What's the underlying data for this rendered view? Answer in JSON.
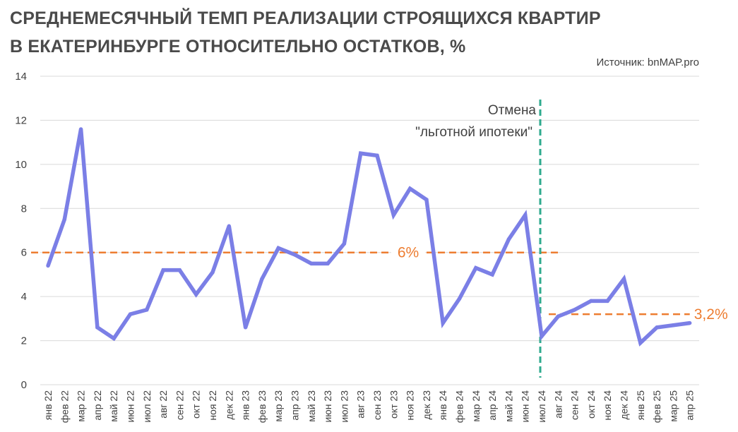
{
  "title_line1": "СРЕДНЕМЕСЯЧНЫЙ  ТЕМП РЕАЛИЗАЦИИ СТРОЯЩИХСЯ КВАРТИР",
  "title_line2": "В ЕКАТЕРИНБУРГЕ ОТНОСИТЕЛЬНО ОСТАТКОВ, %",
  "source": "Источник: bnMAP.pro",
  "colors": {
    "line": "#7b7fe6",
    "reference": "#ed7d31",
    "event": "#2eaa8e",
    "grid": "#d9d9d9"
  },
  "chart_data": {
    "type": "line",
    "title": "СРЕДНЕМЕСЯЧНЫЙ  ТЕМП РЕАЛИЗАЦИИ СТРОЯЩИХСЯ КВАРТИР В ЕКАТЕРИНБУРГЕ ОТНОСИТЕЛЬНО ОСТАТКОВ, %",
    "xlabel": "",
    "ylabel": "",
    "ylim": [
      0,
      14
    ],
    "yticks": [
      0,
      2,
      4,
      6,
      8,
      10,
      12,
      14
    ],
    "grid": true,
    "categories": [
      "янв 22",
      "фев 22",
      "мар 22",
      "апр 22",
      "май 22",
      "июн 22",
      "июл 22",
      "авг 22",
      "сен 22",
      "окт 22",
      "ноя 22",
      "дек 22",
      "янв 23",
      "фев 23",
      "мар 23",
      "апр 23",
      "май 23",
      "июн 23",
      "июл 23",
      "авг 23",
      "сен 23",
      "окт 23",
      "ноя 23",
      "дек 23",
      "янв 24",
      "фев 24",
      "мар 24",
      "апр 24",
      "май 24",
      "июн 24",
      "июл 24",
      "авг 24",
      "сен 24",
      "окт 24",
      "ноя 24",
      "дек 24",
      "янв 25",
      "фев 25",
      "мар 25",
      "апр 25"
    ],
    "values": [
      5.4,
      7.5,
      11.6,
      2.6,
      2.1,
      3.2,
      3.4,
      5.2,
      5.2,
      4.1,
      5.1,
      7.2,
      2.6,
      4.8,
      6.2,
      5.9,
      5.5,
      5.5,
      6.4,
      10.5,
      10.4,
      7.7,
      8.9,
      8.4,
      2.8,
      3.9,
      5.3,
      5.0,
      6.6,
      7.7,
      2.2,
      3.1,
      3.4,
      3.8,
      3.8,
      4.8,
      1.9,
      2.6,
      2.7,
      2.8
    ],
    "reference_lines": [
      {
        "value": 6,
        "label": "6%",
        "from": "янв 22",
        "to": "июл 24"
      },
      {
        "value": 3.2,
        "label": "3,2%",
        "from": "июл 24",
        "to": "апр 25"
      }
    ],
    "event_marker": {
      "at": "июл 24",
      "label_line1": "Отмена",
      "label_line2": "\"льготной ипотеки\""
    }
  }
}
